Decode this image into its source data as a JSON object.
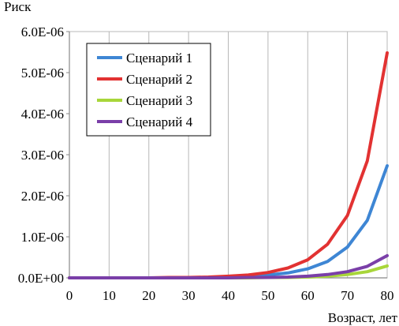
{
  "chart_data": {
    "type": "line",
    "title": "",
    "xlabel": "Возраст, лет",
    "ylabel": "Риск",
    "xlim": [
      0,
      80
    ],
    "ylim": [
      0,
      6e-06
    ],
    "xticks": [
      "0",
      "10",
      "20",
      "30",
      "40",
      "50",
      "60",
      "70",
      "80"
    ],
    "yticks": [
      "0.0E+00",
      "1.0E-06",
      "2.0E-06",
      "3.0E-06",
      "4.0E-06",
      "5.0E-06",
      "6.0E-06"
    ],
    "grid": "vertical",
    "legend_position": "top-left",
    "x": [
      0,
      5,
      10,
      15,
      20,
      25,
      30,
      35,
      40,
      45,
      50,
      55,
      60,
      65,
      70,
      75,
      80
    ],
    "series": [
      {
        "name": "Сценарий 1",
        "color": "#3e86d4",
        "values": [
          0,
          0,
          0,
          0,
          0,
          0,
          1e-08,
          1e-08,
          2e-08,
          4e-08,
          7e-08,
          1.2e-07,
          2.2e-07,
          4e-07,
          7.5e-07,
          1.4e-06,
          2.73e-06
        ]
      },
      {
        "name": "Сценарий 2",
        "color": "#e23232",
        "values": [
          0,
          0,
          0,
          0,
          0,
          1e-08,
          1e-08,
          2e-08,
          4e-08,
          7e-08,
          1.3e-07,
          2.4e-07,
          4.4e-07,
          8.2e-07,
          1.52e-06,
          2.85e-06,
          5.48e-06
        ]
      },
      {
        "name": "Сценарий 3",
        "color": "#a8d63a",
        "values": [
          0,
          0,
          0,
          0,
          0,
          0,
          0,
          0,
          0,
          0,
          1e-08,
          1e-08,
          2e-08,
          4e-08,
          8e-08,
          1.5e-07,
          2.9e-07
        ]
      },
      {
        "name": "Сценарий 4",
        "color": "#7a3fa8",
        "values": [
          0,
          0,
          0,
          0,
          0,
          0,
          0,
          0,
          0,
          1e-08,
          1e-08,
          2e-08,
          4e-08,
          8e-08,
          1.5e-07,
          2.8e-07,
          5.4e-07
        ]
      }
    ]
  }
}
